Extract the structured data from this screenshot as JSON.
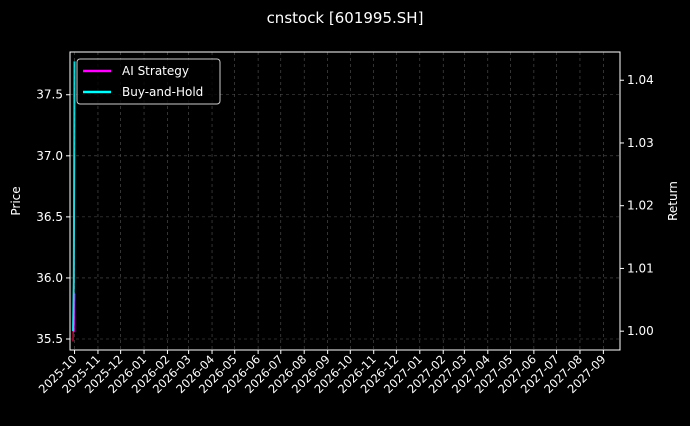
{
  "chart_data": {
    "type": "line",
    "title": "cnstock [601995.SH]",
    "ylabel": "Price",
    "ylabel_right": "Return",
    "ylim": [
      35.41,
      37.85
    ],
    "ylim_right": [
      0.997,
      1.0445
    ],
    "xlim": [
      "2025-09-25",
      "2027-09-23"
    ],
    "yticks": [
      35.5,
      36.0,
      36.5,
      37.0,
      37.5
    ],
    "yticks_right": [
      1.0,
      1.01,
      1.02,
      1.03,
      1.04
    ],
    "ytick_labels": [
      "35.5",
      "36.0",
      "36.5",
      "37.0",
      "37.5"
    ],
    "ytick_labels_right": [
      "1.00",
      "1.01",
      "1.02",
      "1.03",
      "1.04"
    ],
    "xtick_labels": [
      "2025-10",
      "2025-11",
      "2025-12",
      "2026-01",
      "2026-02",
      "2026-03",
      "2026-04",
      "2026-05",
      "2026-06",
      "2026-07",
      "2026-08",
      "2026-09",
      "2026-10",
      "2026-11",
      "2026-12",
      "2027-01",
      "2027-02",
      "2027-03",
      "2027-04",
      "2027-05",
      "2027-06",
      "2027-07",
      "2027-08",
      "2027-09"
    ],
    "grid": true,
    "legend_position": "top-left",
    "x": [
      "2025-09-29",
      "2025-09-30",
      "2025-10-01"
    ],
    "price_series": {
      "axis": "left",
      "color": "#cc0033",
      "values": [
        35.48,
        35.76,
        37.0
      ]
    },
    "series": [
      {
        "name": "AI Strategy",
        "axis": "right",
        "color": "#ff00ff",
        "values": [
          1.0,
          1.0,
          1.006
        ]
      },
      {
        "name": "Buy-and-Hold",
        "axis": "right",
        "color": "#00ffff",
        "values": [
          1.0,
          1.008,
          1.043
        ]
      }
    ]
  }
}
